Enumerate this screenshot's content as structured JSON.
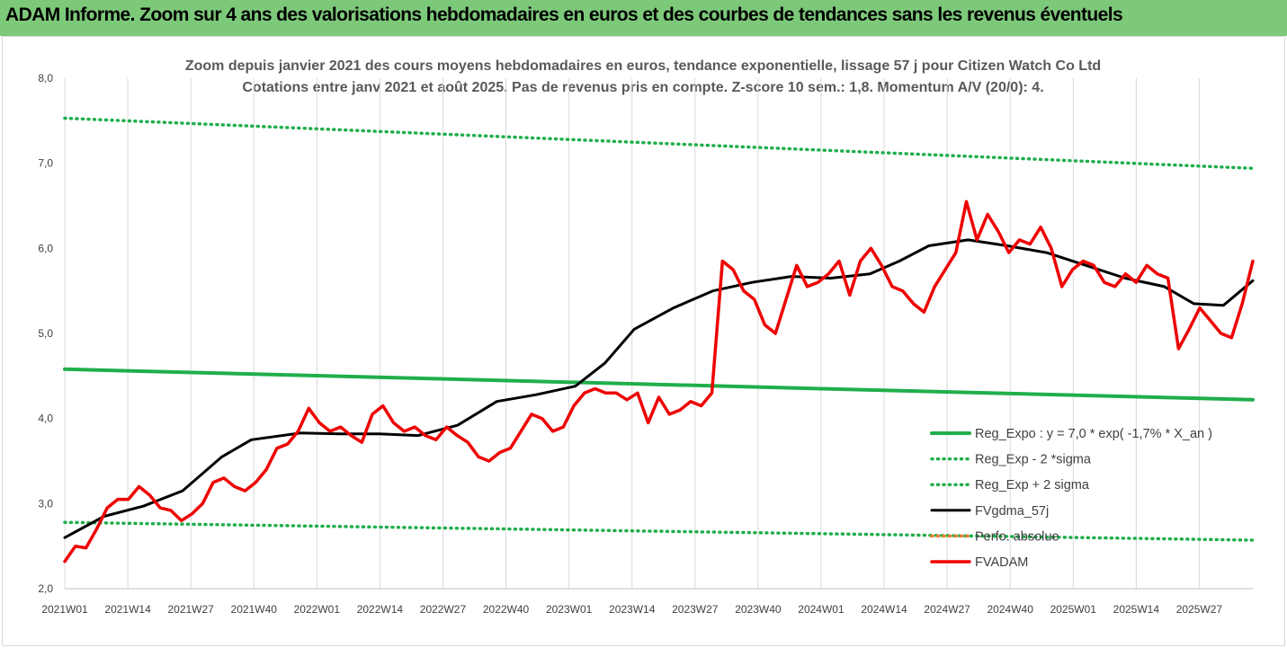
{
  "banner": {
    "title": "ADAM Informe. Zoom sur 4 ans des valorisations hebdomadaires en euros et des courbes de tendances sans les revenus éventuels"
  },
  "colors": {
    "banner_bg": "#7dc97a",
    "green": "#1fae4b",
    "black": "#000000",
    "red": "#ee0000",
    "orange": "#ed7d31"
  },
  "chart_data": {
    "type": "line",
    "title": "Zoom depuis janvier 2021 des cours moyens hebdomadaires en euros, tendance exponentielle, lissage 57 j pour Citizen Watch Co Ltd",
    "subtitle": "Cotations entre janv 2021 et août 2025.  Pas de revenus pris en compte. Z-score 10 sem.: 1,8. Momentum A/V (20/0): 4.",
    "ylim": [
      2.0,
      8.0
    ],
    "y_ticks": [
      "2,0",
      "3,0",
      "4,0",
      "5,0",
      "6,0",
      "7,0",
      "8,0"
    ],
    "x_ticks": [
      "2021W01",
      "2021W14",
      "2021W27",
      "2021W40",
      "2022W01",
      "2022W14",
      "2022W27",
      "2022W40",
      "2023W01",
      "2023W14",
      "2023W27",
      "2023W40",
      "2024W01",
      "2024W14",
      "2024W27",
      "2024W40",
      "2025W01",
      "2025W14",
      "2025W27"
    ],
    "x_range_weeks": [
      0,
      242
    ],
    "grid": "vertical",
    "legend_position": "bottom-right",
    "series": [
      {
        "name": "Reg_Expo : y = 7,0 * exp( -1,7% *  X_an )",
        "style": "solid",
        "color": "#1fae4b",
        "points": [
          [
            0,
            4.58
          ],
          [
            242,
            4.22
          ]
        ]
      },
      {
        "name": "Reg_Exp - 2 *sigma",
        "style": "dotted",
        "color": "#1fae4b",
        "points": [
          [
            0,
            2.78
          ],
          [
            242,
            2.57
          ]
        ]
      },
      {
        "name": "Reg_Exp + 2 sigma",
        "style": "dotted",
        "color": "#1fae4b",
        "points": [
          [
            0,
            7.53
          ],
          [
            242,
            6.94
          ]
        ]
      },
      {
        "name": "FVgdma_57j",
        "style": "solid",
        "color": "#000000",
        "points": [
          [
            0,
            2.6
          ],
          [
            8,
            2.85
          ],
          [
            16,
            2.97
          ],
          [
            24,
            3.15
          ],
          [
            32,
            3.55
          ],
          [
            38,
            3.75
          ],
          [
            48,
            3.83
          ],
          [
            56,
            3.82
          ],
          [
            64,
            3.82
          ],
          [
            72,
            3.8
          ],
          [
            80,
            3.92
          ],
          [
            88,
            4.2
          ],
          [
            96,
            4.28
          ],
          [
            104,
            4.38
          ],
          [
            110,
            4.65
          ],
          [
            116,
            5.05
          ],
          [
            124,
            5.3
          ],
          [
            132,
            5.5
          ],
          [
            140,
            5.6
          ],
          [
            148,
            5.67
          ],
          [
            156,
            5.65
          ],
          [
            164,
            5.7
          ],
          [
            170,
            5.85
          ],
          [
            176,
            6.03
          ],
          [
            184,
            6.1
          ],
          [
            192,
            6.03
          ],
          [
            200,
            5.95
          ],
          [
            208,
            5.8
          ],
          [
            216,
            5.65
          ],
          [
            224,
            5.55
          ],
          [
            230,
            5.35
          ],
          [
            236,
            5.33
          ],
          [
            242,
            5.62
          ]
        ]
      },
      {
        "name": "Perfo. absolue",
        "style": "dotted",
        "color": "#ed7d31",
        "points": []
      },
      {
        "name": "FVADAM",
        "style": "solid",
        "color": "#ee0000",
        "points": [
          [
            0,
            2.32
          ],
          [
            1,
            2.5
          ],
          [
            2,
            2.48
          ],
          [
            3,
            2.7
          ],
          [
            4,
            2.95
          ],
          [
            5,
            3.05
          ],
          [
            6,
            3.05
          ],
          [
            7,
            3.2
          ],
          [
            8,
            3.1
          ],
          [
            9,
            2.95
          ],
          [
            10,
            2.92
          ],
          [
            11,
            2.8
          ],
          [
            12,
            2.88
          ],
          [
            13,
            3.0
          ],
          [
            14,
            3.25
          ],
          [
            15,
            3.3
          ],
          [
            16,
            3.2
          ],
          [
            17,
            3.15
          ],
          [
            18,
            3.25
          ],
          [
            19,
            3.4
          ],
          [
            20,
            3.65
          ],
          [
            21,
            3.7
          ],
          [
            22,
            3.85
          ],
          [
            23,
            4.12
          ],
          [
            24,
            3.95
          ],
          [
            25,
            3.85
          ],
          [
            26,
            3.9
          ],
          [
            27,
            3.8
          ],
          [
            28,
            3.72
          ],
          [
            29,
            4.05
          ],
          [
            30,
            4.15
          ],
          [
            31,
            3.95
          ],
          [
            32,
            3.85
          ],
          [
            33,
            3.9
          ],
          [
            34,
            3.8
          ],
          [
            35,
            3.75
          ],
          [
            36,
            3.9
          ],
          [
            37,
            3.8
          ],
          [
            38,
            3.72
          ],
          [
            39,
            3.55
          ],
          [
            40,
            3.5
          ],
          [
            41,
            3.6
          ],
          [
            42,
            3.65
          ],
          [
            43,
            3.85
          ],
          [
            44,
            4.05
          ],
          [
            45,
            4.0
          ],
          [
            46,
            3.85
          ],
          [
            47,
            3.9
          ],
          [
            48,
            4.15
          ],
          [
            49,
            4.3
          ],
          [
            50,
            4.35
          ],
          [
            51,
            4.3
          ],
          [
            52,
            4.3
          ],
          [
            53,
            4.22
          ],
          [
            54,
            4.3
          ],
          [
            55,
            3.95
          ],
          [
            56,
            4.25
          ],
          [
            57,
            4.05
          ],
          [
            58,
            4.1
          ],
          [
            59,
            4.2
          ],
          [
            60,
            4.15
          ],
          [
            61,
            4.3
          ],
          [
            62,
            5.85
          ],
          [
            63,
            5.75
          ],
          [
            64,
            5.5
          ],
          [
            65,
            5.4
          ],
          [
            66,
            5.1
          ],
          [
            67,
            5.0
          ],
          [
            68,
            5.4
          ],
          [
            69,
            5.8
          ],
          [
            70,
            5.55
          ],
          [
            71,
            5.6
          ],
          [
            72,
            5.7
          ],
          [
            73,
            5.85
          ],
          [
            74,
            5.45
          ],
          [
            75,
            5.85
          ],
          [
            76,
            6.0
          ],
          [
            77,
            5.8
          ],
          [
            78,
            5.55
          ],
          [
            79,
            5.5
          ],
          [
            80,
            5.35
          ],
          [
            81,
            5.25
          ],
          [
            82,
            5.55
          ],
          [
            83,
            5.75
          ],
          [
            84,
            5.95
          ],
          [
            85,
            6.55
          ],
          [
            86,
            6.1
          ],
          [
            87,
            6.4
          ],
          [
            88,
            6.2
          ],
          [
            89,
            5.95
          ],
          [
            90,
            6.1
          ],
          [
            91,
            6.05
          ],
          [
            92,
            6.25
          ],
          [
            93,
            6.0
          ],
          [
            94,
            5.55
          ],
          [
            95,
            5.75
          ],
          [
            96,
            5.85
          ],
          [
            97,
            5.8
          ],
          [
            98,
            5.6
          ],
          [
            99,
            5.55
          ],
          [
            100,
            5.7
          ],
          [
            101,
            5.6
          ],
          [
            102,
            5.8
          ],
          [
            103,
            5.7
          ],
          [
            104,
            5.65
          ],
          [
            105,
            4.82
          ],
          [
            106,
            5.05
          ],
          [
            107,
            5.3
          ],
          [
            108,
            5.15
          ],
          [
            109,
            5.0
          ],
          [
            110,
            4.95
          ],
          [
            111,
            5.35
          ],
          [
            112,
            5.85
          ]
        ]
      }
    ]
  }
}
